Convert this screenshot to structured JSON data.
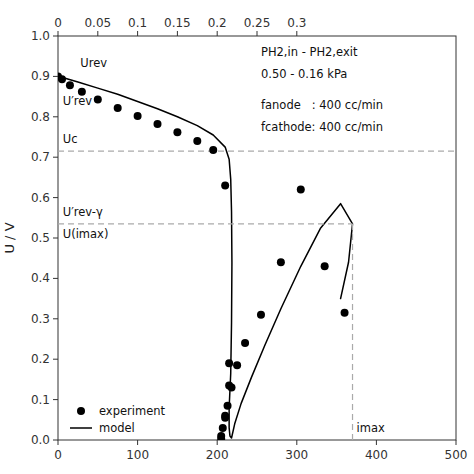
{
  "chart_data": {
    "type": "line",
    "ylabel": "U / V",
    "xlim": [
      0,
      500
    ],
    "xticks": [
      0,
      100,
      200,
      300,
      400,
      500
    ],
    "x2lim": [
      0,
      0.5
    ],
    "x2ticks": [
      0,
      0.05,
      0.1,
      0.15,
      0.2,
      0.25,
      0.3
    ],
    "ylim": [
      0,
      1.0
    ],
    "yticks": [
      {
        "value": 0,
        "label": "0.0"
      },
      0.1,
      0.2,
      0.3,
      0.4,
      0.5,
      0.6,
      0.7,
      0.8,
      0.9,
      {
        "value": 1.0,
        "label": "1.0"
      }
    ],
    "legend": "lower left",
    "series": [
      {
        "name": "experiment",
        "type": "scatter",
        "color": "#000000",
        "x": [
          0,
          5,
          15,
          30,
          50,
          75,
          100,
          125,
          150,
          175,
          195,
          210,
          215,
          215,
          213,
          210,
          207,
          205,
          205,
          210,
          218,
          225,
          235,
          255,
          280,
          305,
          335,
          360
        ],
        "values": [
          0.9,
          0.893,
          0.878,
          0.862,
          0.843,
          0.822,
          0.802,
          0.782,
          0.762,
          0.74,
          0.718,
          0.63,
          0.19,
          0.135,
          0.085,
          0.055,
          0.03,
          0.01,
          0.003,
          0.06,
          0.13,
          0.185,
          0.24,
          0.31,
          0.44,
          0.62,
          0.43,
          0.315
        ]
      },
      {
        "name": "model",
        "type": "line",
        "color": "#000000",
        "x": [
          0,
          10,
          25,
          50,
          75,
          100,
          125,
          150,
          175,
          195,
          210,
          215,
          217,
          218,
          218.5,
          218,
          217,
          215,
          215,
          216,
          218,
          222,
          230,
          243,
          260,
          280,
          305,
          330,
          355,
          370,
          365,
          355
        ],
        "values": [
          0.9,
          0.895,
          0.886,
          0.871,
          0.856,
          0.838,
          0.82,
          0.8,
          0.778,
          0.755,
          0.725,
          0.695,
          0.645,
          0.565,
          0.44,
          0.29,
          0.165,
          0.08,
          0.03,
          0.01,
          0.005,
          0.04,
          0.09,
          0.155,
          0.235,
          0.325,
          0.43,
          0.525,
          0.585,
          0.535,
          0.44,
          0.35
        ]
      },
      {
        "type": "line",
        "line_style": "dashed",
        "color": "#aaaaaa",
        "x": [
          0,
          500
        ],
        "values": [
          0.715,
          0.715
        ]
      },
      {
        "type": "line",
        "line_style": "dashed",
        "color": "#aaaaaa",
        "x": [
          0,
          370
        ],
        "values": [
          0.535,
          0.535
        ]
      },
      {
        "type": "line",
        "line_style": "dashed",
        "color": "#aaaaaa",
        "x": [
          370,
          370
        ],
        "values": [
          0,
          0.535
        ]
      }
    ],
    "annotations": [
      {
        "text": "Urev",
        "x": 28,
        "y": 0.915
      },
      {
        "text": "U′rev",
        "x": 6,
        "y": 0.855
      },
      {
        "text": "Uc",
        "x": 6,
        "y": 0.728
      },
      {
        "text": "U′rev-γ",
        "x": 6,
        "y": 0.547
      },
      {
        "text": "U(imax)",
        "x": 6,
        "y": 0.525
      },
      {
        "text": "imax",
        "x": 375,
        "y": 0.012
      },
      {
        "text": "PH2,in - PH2,exit",
        "x": 255,
        "y": 0.975
      },
      {
        "text": "0.50 - 0.16 kPa",
        "x": 255,
        "y": 0.92
      },
      {
        "text": "fanode   : 400 cc/min",
        "x": 255,
        "y": 0.845
      },
      {
        "text": "fcathode: 400 cc/min",
        "x": 255,
        "y": 0.79
      }
    ]
  }
}
